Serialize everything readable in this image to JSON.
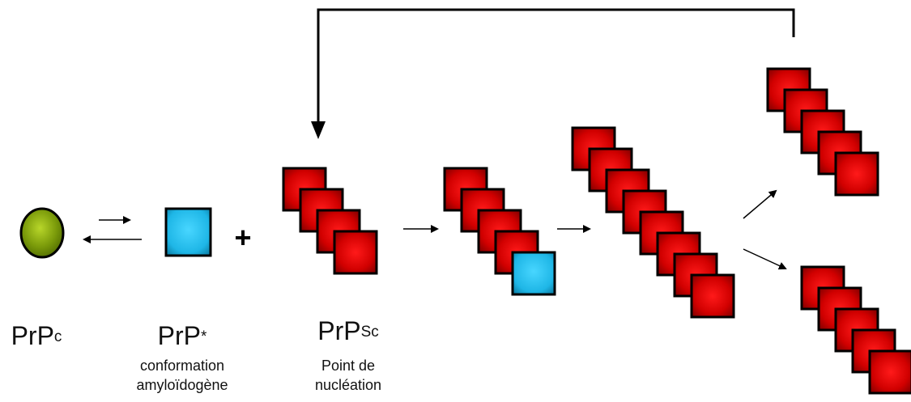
{
  "labels": {
    "prpc": {
      "base": "PrP",
      "sup": "c"
    },
    "prpstar": {
      "base": "PrP",
      "sup": "*",
      "caption_line1": "conformation",
      "caption_line2": "amyloïdogène"
    },
    "prpsc": {
      "base": "PrP",
      "sup": "Sc",
      "caption_line1": "Point de",
      "caption_line2": "nucléation"
    },
    "plus": "+"
  },
  "colors": {
    "prpc_fill": "#7a9a0a",
    "prpstar_fill": "#1eb6e6",
    "prpsc_fill": "#d10000",
    "stroke": "#000000"
  },
  "stacks": {
    "nucleus": {
      "prpsc_units": 4
    },
    "growing": {
      "prpsc_units": 4,
      "added_prpstar": 1
    },
    "fibril": {
      "prpsc_units": 8
    },
    "fragment_top": {
      "prpsc_units": 5
    },
    "fragment_bottom": {
      "prpsc_units": 5
    }
  }
}
